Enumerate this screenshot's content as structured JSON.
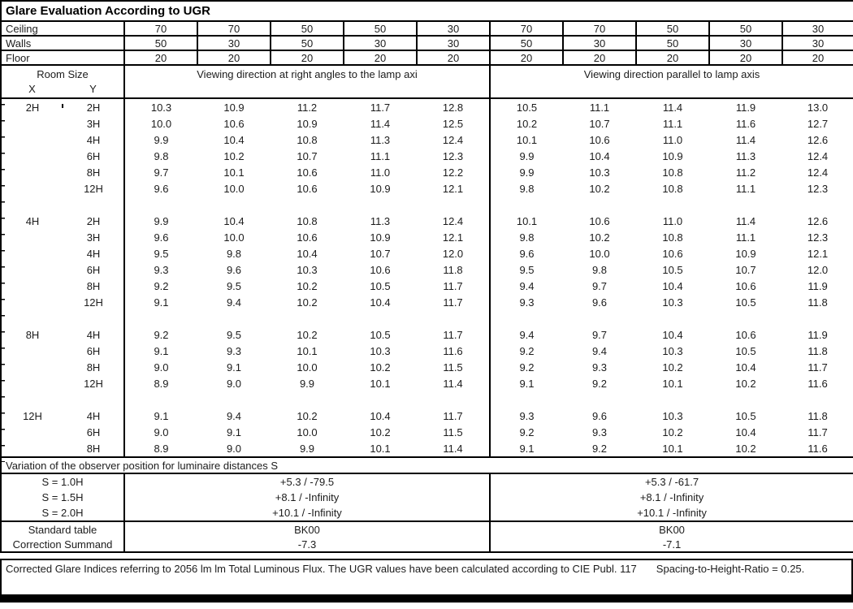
{
  "title": "Glare Evaluation According to UGR",
  "header": {
    "ceiling_label": "Ceiling",
    "walls_label": "Walls",
    "floor_label": "Floor",
    "ceiling": [
      "70",
      "70",
      "50",
      "50",
      "30",
      "70",
      "70",
      "50",
      "50",
      "30"
    ],
    "walls": [
      "50",
      "30",
      "50",
      "30",
      "30",
      "50",
      "30",
      "50",
      "30",
      "30"
    ],
    "floor": [
      "20",
      "20",
      "20",
      "20",
      "20",
      "20",
      "20",
      "20",
      "20",
      "20"
    ],
    "room_size_label": "Room Size",
    "x_label": "X",
    "y_label": "Y",
    "section1_label": "Viewing direction at right angles to the lamp axi",
    "section2_label": "Viewing direction parallel to lamp axis"
  },
  "blocks": [
    {
      "x": "2H",
      "rows": [
        {
          "y": "2H",
          "values": [
            "10.3",
            "10.9",
            "11.2",
            "11.7",
            "12.8",
            "10.5",
            "11.1",
            "11.4",
            "11.9",
            "13.0"
          ]
        },
        {
          "y": "3H",
          "values": [
            "10.0",
            "10.6",
            "10.9",
            "11.4",
            "12.5",
            "10.2",
            "10.7",
            "11.1",
            "11.6",
            "12.7"
          ]
        },
        {
          "y": "4H",
          "values": [
            "9.9",
            "10.4",
            "10.8",
            "11.3",
            "12.4",
            "10.1",
            "10.6",
            "11.0",
            "11.4",
            "12.6"
          ]
        },
        {
          "y": "6H",
          "values": [
            "9.8",
            "10.2",
            "10.7",
            "11.1",
            "12.3",
            "9.9",
            "10.4",
            "10.9",
            "11.3",
            "12.4"
          ]
        },
        {
          "y": "8H",
          "values": [
            "9.7",
            "10.1",
            "10.6",
            "11.0",
            "12.2",
            "9.9",
            "10.3",
            "10.8",
            "11.2",
            "12.4"
          ]
        },
        {
          "y": "12H",
          "values": [
            "9.6",
            "10.0",
            "10.6",
            "10.9",
            "12.1",
            "9.8",
            "10.2",
            "10.8",
            "11.1",
            "12.3"
          ]
        }
      ]
    },
    {
      "x": "4H",
      "rows": [
        {
          "y": "2H",
          "values": [
            "9.9",
            "10.4",
            "10.8",
            "11.3",
            "12.4",
            "10.1",
            "10.6",
            "11.0",
            "11.4",
            "12.6"
          ]
        },
        {
          "y": "3H",
          "values": [
            "9.6",
            "10.0",
            "10.6",
            "10.9",
            "12.1",
            "9.8",
            "10.2",
            "10.8",
            "11.1",
            "12.3"
          ]
        },
        {
          "y": "4H",
          "values": [
            "9.5",
            "9.8",
            "10.4",
            "10.7",
            "12.0",
            "9.6",
            "10.0",
            "10.6",
            "10.9",
            "12.1"
          ]
        },
        {
          "y": "6H",
          "values": [
            "9.3",
            "9.6",
            "10.3",
            "10.6",
            "11.8",
            "9.5",
            "9.8",
            "10.5",
            "10.7",
            "12.0"
          ]
        },
        {
          "y": "8H",
          "values": [
            "9.2",
            "9.5",
            "10.2",
            "10.5",
            "11.7",
            "9.4",
            "9.7",
            "10.4",
            "10.6",
            "11.9"
          ]
        },
        {
          "y": "12H",
          "values": [
            "9.1",
            "9.4",
            "10.2",
            "10.4",
            "11.7",
            "9.3",
            "9.6",
            "10.3",
            "10.5",
            "11.8"
          ]
        }
      ]
    },
    {
      "x": "8H",
      "rows": [
        {
          "y": "4H",
          "values": [
            "9.2",
            "9.5",
            "10.2",
            "10.5",
            "11.7",
            "9.4",
            "9.7",
            "10.4",
            "10.6",
            "11.9"
          ]
        },
        {
          "y": "6H",
          "values": [
            "9.1",
            "9.3",
            "10.1",
            "10.3",
            "11.6",
            "9.2",
            "9.4",
            "10.3",
            "10.5",
            "11.8"
          ]
        },
        {
          "y": "8H",
          "values": [
            "9.0",
            "9.1",
            "10.0",
            "10.2",
            "11.5",
            "9.2",
            "9.3",
            "10.2",
            "10.4",
            "11.7"
          ]
        },
        {
          "y": "12H",
          "values": [
            "8.9",
            "9.0",
            "9.9",
            "10.1",
            "11.4",
            "9.1",
            "9.2",
            "10.1",
            "10.2",
            "11.6"
          ]
        }
      ]
    },
    {
      "x": "12H",
      "rows": [
        {
          "y": "4H",
          "values": [
            "9.1",
            "9.4",
            "10.2",
            "10.4",
            "11.7",
            "9.3",
            "9.6",
            "10.3",
            "10.5",
            "11.8"
          ]
        },
        {
          "y": "6H",
          "values": [
            "9.0",
            "9.1",
            "10.0",
            "10.2",
            "11.5",
            "9.2",
            "9.3",
            "10.2",
            "10.4",
            "11.7"
          ]
        },
        {
          "y": "8H",
          "values": [
            "8.9",
            "9.0",
            "9.9",
            "10.1",
            "11.4",
            "9.1",
            "9.2",
            "10.1",
            "10.2",
            "11.6"
          ]
        }
      ]
    }
  ],
  "variation": {
    "label": "Variation of the observer position for luminaire distances S",
    "rows": [
      {
        "label": "S = 1.0H",
        "right_angle": "+5.3 / -79.5",
        "parallel": "+5.3 / -61.7"
      },
      {
        "label": "S = 1.5H",
        "right_angle": "+8.1 / -Infinity",
        "parallel": "+8.1 / -Infinity"
      },
      {
        "label": "S = 2.0H",
        "right_angle": "+10.1 / -Infinity",
        "parallel": "+10.1 / -Infinity"
      }
    ]
  },
  "summary": {
    "rows": [
      {
        "label": "Standard table",
        "right_angle": "BK00",
        "parallel": "BK00"
      },
      {
        "label": "Correction Summand",
        "right_angle": "-7.3",
        "parallel": "-7.1"
      }
    ]
  },
  "footer": {
    "text1": "Corrected Glare Indices referring to 2056 lm lm Total Luminous Flux. The UGR values have been calculated according to CIE Publ. 117",
    "text2": "Spacing-to-Height-Ratio = 0.25."
  },
  "colors": {
    "border": "#000000",
    "text": "#1c1c1c",
    "background": "#ffffff"
  }
}
